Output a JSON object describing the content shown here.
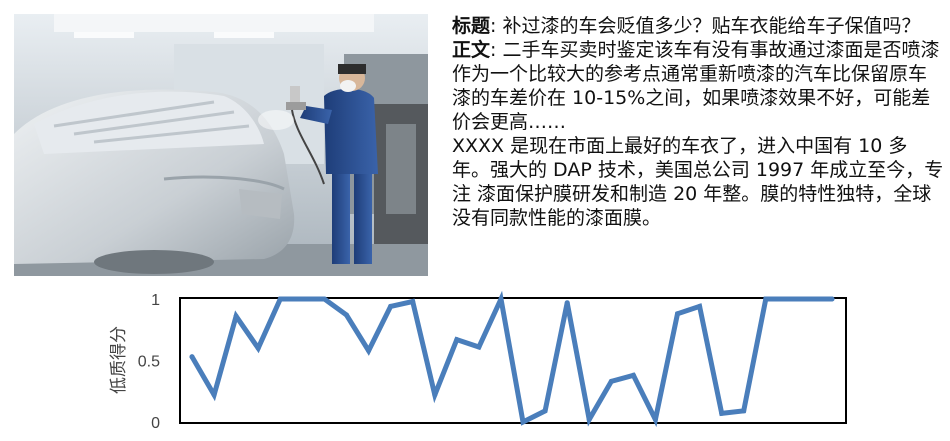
{
  "article": {
    "title_label": "标题",
    "title_text": ": 补过漆的车会贬值多少？贴车衣能给车子保值吗？",
    "body_label": "正文",
    "body_text": ": 二手车买卖时鉴定该车有没有事故通过漆面是否喷漆作为一个比较大的参考点通常重新喷漆的汽车比保留原车漆的车差价在 10-15%之间，如果喷漆效果不好，可能差价会更高……",
    "body_text_2": "XXXX 是现在市面上最好的车衣了，进入中国有 10 多年。强大的 DAP 技术，美国总公司 1997 年成立至今，专注 漆面保护膜研发和制造 20 年整。膜的特性独特，全球没有同款性能的漆面膜。"
  },
  "photo": {
    "description_icon": "car-spray-painting-photo",
    "colors": {
      "booth": "#c9d1d8",
      "car": "#d7dde2",
      "worker": "#2a4e8f"
    }
  },
  "chart_data": {
    "type": "line",
    "ylabel": "低质得分",
    "ylim": [
      0,
      1
    ],
    "yticks": [
      "0",
      "0.5",
      "1"
    ],
    "grid": false,
    "line_color": "#4a7ebb",
    "series": [
      {
        "values": [
          0.53,
          0.22,
          0.86,
          0.6,
          1.0,
          1.0,
          1.0,
          0.87,
          0.58,
          0.94,
          0.98,
          0.22,
          0.67,
          0.61,
          1.0,
          0.0,
          0.09,
          0.97,
          0.02,
          0.33,
          0.38,
          0.02,
          0.88,
          0.94,
          0.07,
          0.09,
          1.0,
          1.0,
          1.0,
          1.0
        ]
      }
    ]
  }
}
